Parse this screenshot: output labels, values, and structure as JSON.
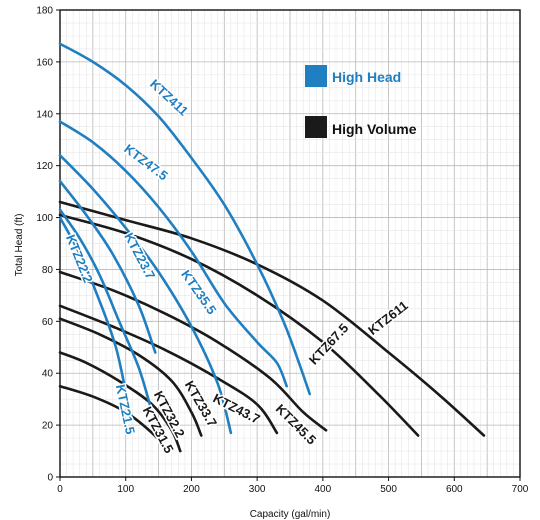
{
  "colors": {
    "high_head": "#1f7fc1",
    "high_volume": "#1a1a1a"
  },
  "chart_data": {
    "type": "line",
    "title": "",
    "xlabel": "Capacity (gal/min)",
    "ylabel": "Total Head (ft)",
    "xlim": [
      0,
      700
    ],
    "ylim": [
      0,
      180
    ],
    "xticks": [
      0,
      100,
      200,
      300,
      400,
      500,
      600,
      700
    ],
    "yticks": [
      0,
      20,
      40,
      60,
      80,
      100,
      120,
      140,
      160,
      180
    ],
    "grid": true,
    "legend": {
      "placement": "top-right",
      "entries": [
        {
          "label": "High Head",
          "color": "#1f7fc1"
        },
        {
          "label": "High Volume",
          "color": "#1a1a1a"
        }
      ]
    },
    "series": [
      {
        "name": "KTZ411",
        "group": "high_head",
        "points": [
          [
            0,
            167
          ],
          [
            50,
            160
          ],
          [
            100,
            151
          ],
          [
            150,
            139
          ],
          [
            200,
            123
          ],
          [
            250,
            105
          ],
          [
            300,
            82
          ],
          [
            340,
            60
          ],
          [
            365,
            43
          ],
          [
            380,
            32
          ]
        ]
      },
      {
        "name": "KTZ47.5",
        "group": "high_head",
        "points": [
          [
            0,
            137
          ],
          [
            50,
            129
          ],
          [
            100,
            118
          ],
          [
            150,
            104
          ],
          [
            200,
            87
          ],
          [
            250,
            67
          ],
          [
            300,
            52
          ],
          [
            330,
            44
          ],
          [
            345,
            35
          ]
        ]
      },
      {
        "name": "KTZ35.5",
        "group": "high_head",
        "points": [
          [
            0,
            124
          ],
          [
            50,
            111
          ],
          [
            100,
            96
          ],
          [
            150,
            79
          ],
          [
            200,
            58
          ],
          [
            240,
            36
          ],
          [
            260,
            17
          ]
        ]
      },
      {
        "name": "KTZ23.7",
        "group": "high_head",
        "points": [
          [
            0,
            114
          ],
          [
            40,
            101
          ],
          [
            80,
            86
          ],
          [
            120,
            66
          ],
          [
            145,
            48
          ]
        ]
      },
      {
        "name": "KTZ22.2",
        "group": "high_head",
        "points": [
          [
            0,
            103
          ],
          [
            30,
            92
          ],
          [
            60,
            78
          ],
          [
            90,
            60
          ],
          [
            120,
            42
          ],
          [
            140,
            25
          ]
        ]
      },
      {
        "name": "KTZ21.5",
        "group": "high_head",
        "points": [
          [
            0,
            100
          ],
          [
            30,
            86
          ],
          [
            60,
            68
          ],
          [
            85,
            50
          ],
          [
            100,
            33
          ],
          [
            110,
            22
          ]
        ]
      },
      {
        "name": "KTZ611",
        "group": "high_volume",
        "points": [
          [
            0,
            106
          ],
          [
            100,
            99
          ],
          [
            200,
            92
          ],
          [
            300,
            82
          ],
          [
            400,
            68
          ],
          [
            500,
            48
          ],
          [
            580,
            31
          ],
          [
            645,
            16
          ]
        ]
      },
      {
        "name": "KTZ67.5",
        "group": "high_volume",
        "points": [
          [
            0,
            101
          ],
          [
            100,
            94
          ],
          [
            200,
            84
          ],
          [
            300,
            70
          ],
          [
            400,
            52
          ],
          [
            480,
            33
          ],
          [
            545,
            16
          ]
        ]
      },
      {
        "name": "KTZ45.5",
        "group": "high_volume",
        "points": [
          [
            0,
            79
          ],
          [
            80,
            72
          ],
          [
            160,
            63
          ],
          [
            240,
            52
          ],
          [
            320,
            38
          ],
          [
            370,
            25
          ],
          [
            405,
            18
          ]
        ]
      },
      {
        "name": "KTZ43.7",
        "group": "high_volume",
        "points": [
          [
            0,
            66
          ],
          [
            80,
            58
          ],
          [
            160,
            49
          ],
          [
            240,
            38
          ],
          [
            300,
            28
          ],
          [
            330,
            17
          ]
        ]
      },
      {
        "name": "KTZ33.7",
        "group": "high_volume",
        "points": [
          [
            0,
            61
          ],
          [
            60,
            55
          ],
          [
            120,
            47
          ],
          [
            170,
            37
          ],
          [
            200,
            25
          ],
          [
            215,
            16
          ]
        ]
      },
      {
        "name": "KTZ32.2",
        "group": "high_volume",
        "points": [
          [
            0,
            48
          ],
          [
            40,
            44
          ],
          [
            90,
            37
          ],
          [
            140,
            28
          ],
          [
            170,
            18
          ],
          [
            183,
            10
          ]
        ]
      },
      {
        "name": "KTZ31.5",
        "group": "high_volume",
        "points": [
          [
            0,
            35
          ],
          [
            50,
            31
          ],
          [
            100,
            25
          ],
          [
            140,
            17
          ],
          [
            165,
            10
          ]
        ]
      }
    ],
    "labels": [
      {
        "text": "KTZ411",
        "series": "KTZ411",
        "x": 165,
        "y": 146,
        "angle": 43
      },
      {
        "text": "KTZ47.5",
        "series": "KTZ47.5",
        "x": 130,
        "y": 121,
        "angle": 37
      },
      {
        "text": "KTZ35.5",
        "series": "KTZ35.5",
        "x": 210,
        "y": 71,
        "angle": 55
      },
      {
        "text": "KTZ23.7",
        "series": "KTZ23.7",
        "x": 120,
        "y": 85,
        "angle": 62
      },
      {
        "text": "KTZ22.2",
        "series": "KTZ22.2",
        "x": 28,
        "y": 84,
        "angle": 68
      },
      {
        "text": "KTZ21.5",
        "series": "KTZ21.5",
        "x": 98,
        "y": 26,
        "angle": 78
      },
      {
        "text": "KTZ611",
        "series": "KTZ611",
        "x": 500,
        "y": 61,
        "angle": -38
      },
      {
        "text": "KTZ67.5",
        "series": "KTZ67.5",
        "x": 410,
        "y": 51,
        "angle": -47
      },
      {
        "text": "KTZ45.5",
        "series": "KTZ45.5",
        "x": 358,
        "y": 20,
        "angle": 45
      },
      {
        "text": "KTZ43.7",
        "series": "KTZ43.7",
        "x": 268,
        "y": 26,
        "angle": 27
      },
      {
        "text": "KTZ33.7",
        "series": "KTZ33.7",
        "x": 213,
        "y": 28,
        "angle": 60
      },
      {
        "text": "KTZ32.2",
        "series": "KTZ32.2",
        "x": 165,
        "y": 24,
        "angle": 62
      },
      {
        "text": "KTZ31.5",
        "series": "KTZ31.5",
        "x": 148,
        "y": 18,
        "angle": 62
      }
    ]
  }
}
